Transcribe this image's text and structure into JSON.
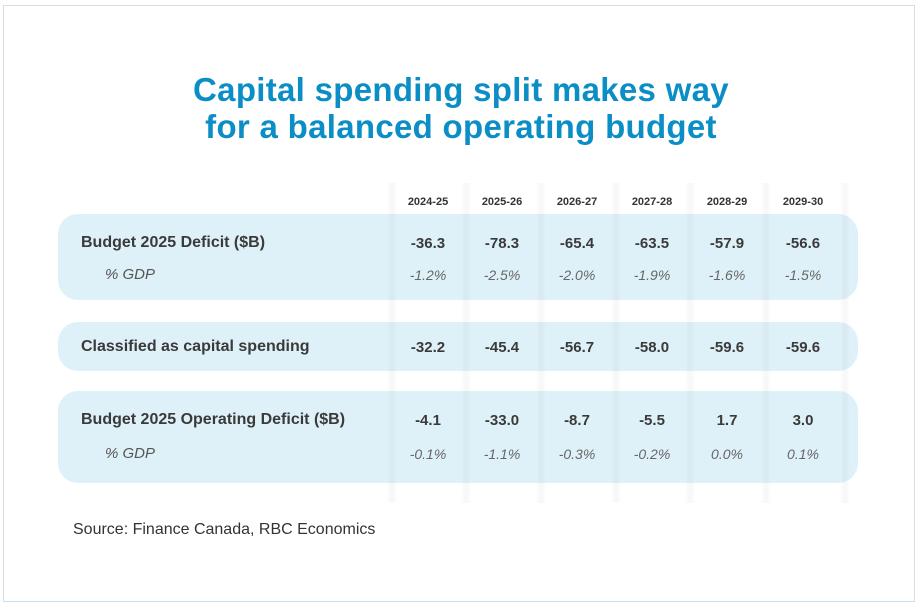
{
  "title_line1": "Capital spending split makes way",
  "title_line2": "for a balanced operating budget",
  "source": "Source: Finance Canada, RBC Economics",
  "colors": {
    "title": "#0b8ec5",
    "panel": "#dff1f8"
  },
  "chart_data": {
    "type": "table",
    "title": "Capital spending split makes way for a balanced operating budget",
    "columns": [
      "2024-25",
      "2025-26",
      "2026-27",
      "2027-28",
      "2028-29",
      "2029-30"
    ],
    "rows": [
      {
        "label": "Budget 2025 Deficit ($B)",
        "values": [
          "-36.3",
          "-78.3",
          "-65.4",
          "-63.5",
          "-57.9",
          "-56.6"
        ],
        "sub_label": "% GDP",
        "sub_values": [
          "-1.2%",
          "-2.5%",
          "-2.0%",
          "-1.9%",
          "-1.6%",
          "-1.5%"
        ]
      },
      {
        "label": "Classified as capital spending",
        "values": [
          "-32.2",
          "-45.4",
          "-56.7",
          "-58.0",
          "-59.6",
          "-59.6"
        ]
      },
      {
        "label": "Budget 2025 Operating Deficit ($B)",
        "values": [
          "-4.1",
          "-33.0",
          "-8.7",
          "-5.5",
          "1.7",
          "3.0"
        ],
        "sub_label": "% GDP",
        "sub_values": [
          "-0.1%",
          "-1.1%",
          "-0.3%",
          "-0.2%",
          "0.0%",
          "0.1%"
        ]
      }
    ]
  }
}
